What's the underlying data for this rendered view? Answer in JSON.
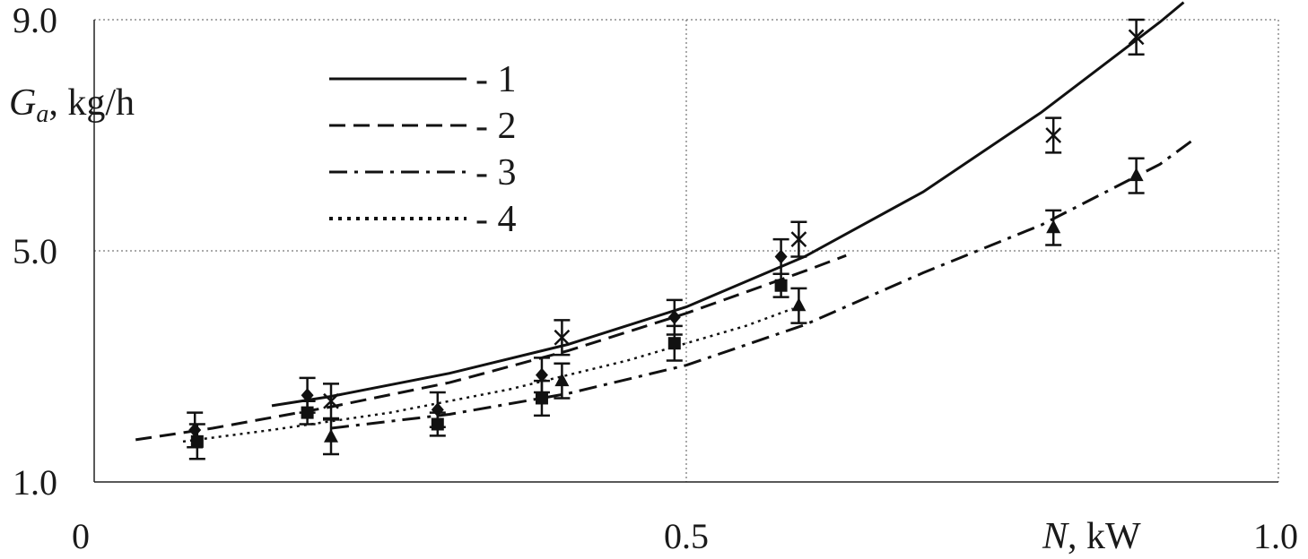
{
  "chart_data": {
    "type": "scatter",
    "xlabel": {
      "var": "N",
      "unit": ", kW"
    },
    "ylabel": {
      "var": "G",
      "sub": "a",
      "unit": ", kg/h"
    },
    "xlim": [
      0,
      1.0
    ],
    "ylim": [
      1.0,
      9.0
    ],
    "x_ticks": [
      {
        "value": 0,
        "label": "0"
      },
      {
        "value": 0.5,
        "label": "0.5"
      },
      {
        "value": 1.0,
        "label": "1.0"
      }
    ],
    "y_ticks": [
      {
        "value": 1.0,
        "label": "1.0"
      },
      {
        "value": 5.0,
        "label": "5.0"
      },
      {
        "value": 9.0,
        "label": "9.0"
      }
    ],
    "grid": "dotted",
    "legend_position": "top-left",
    "legend": [
      {
        "label": "- 1",
        "style": "solid"
      },
      {
        "label": "- 2",
        "style": "dashed"
      },
      {
        "label": "- 3",
        "style": "dash-dot"
      },
      {
        "label": "- 4",
        "style": "dotted"
      }
    ],
    "series": [
      {
        "marker": "x",
        "points": [
          {
            "x": 0.2,
            "y": 2.4,
            "err": 0.3
          },
          {
            "x": 0.395,
            "y": 3.5,
            "err": 0.3
          },
          {
            "x": 0.595,
            "y": 5.2,
            "err": 0.3
          },
          {
            "x": 0.81,
            "y": 7.0,
            "err": 0.3
          },
          {
            "x": 0.88,
            "y": 8.7,
            "err": 0.3
          }
        ],
        "curve": {
          "style": "solid",
          "x": [
            0.15,
            0.2,
            0.3,
            0.4,
            0.5,
            0.6,
            0.7,
            0.8,
            0.9,
            0.92
          ],
          "y": [
            2.32,
            2.48,
            2.88,
            3.38,
            4.03,
            4.9,
            6.02,
            7.4,
            8.96,
            9.3
          ]
        }
      },
      {
        "marker": "diamond",
        "points": [
          {
            "x": 0.085,
            "y": 1.9,
            "err": 0.3
          },
          {
            "x": 0.18,
            "y": 2.5,
            "err": 0.3
          },
          {
            "x": 0.29,
            "y": 2.25,
            "err": 0.3
          },
          {
            "x": 0.378,
            "y": 2.85,
            "err": 0.3
          },
          {
            "x": 0.49,
            "y": 3.85,
            "err": 0.3
          },
          {
            "x": 0.58,
            "y": 4.9,
            "err": 0.3
          }
        ],
        "curve": {
          "style": "dashed",
          "x": [
            0.035,
            0.1,
            0.2,
            0.3,
            0.4,
            0.5,
            0.6,
            0.635
          ],
          "y": [
            1.73,
            1.93,
            2.3,
            2.72,
            3.27,
            3.92,
            4.65,
            4.92
          ]
        }
      },
      {
        "marker": "triangle",
        "points": [
          {
            "x": 0.2,
            "y": 1.78,
            "err": 0.3
          },
          {
            "x": 0.395,
            "y": 2.75,
            "err": 0.3
          },
          {
            "x": 0.595,
            "y": 4.05,
            "err": 0.3
          },
          {
            "x": 0.81,
            "y": 5.4,
            "err": 0.3
          },
          {
            "x": 0.88,
            "y": 6.3,
            "err": 0.3
          }
        ],
        "curve": {
          "style": "dash-dot",
          "x": [
            0.2,
            0.3,
            0.4,
            0.5,
            0.6,
            0.7,
            0.8,
            0.9,
            0.93
          ],
          "y": [
            1.93,
            2.17,
            2.53,
            3.02,
            3.72,
            4.62,
            5.45,
            6.5,
            6.95
          ]
        }
      },
      {
        "marker": "square",
        "points": [
          {
            "x": 0.087,
            "y": 1.7,
            "err": 0.3
          },
          {
            "x": 0.18,
            "y": 2.2,
            "err": 0.2
          },
          {
            "x": 0.29,
            "y": 2.0,
            "err": 0.2
          },
          {
            "x": 0.378,
            "y": 2.45,
            "err": 0.3
          },
          {
            "x": 0.49,
            "y": 3.4,
            "err": 0.3
          },
          {
            "x": 0.58,
            "y": 4.4,
            "err": 0.2
          }
        ],
        "curve": {
          "style": "dotted",
          "x": [
            0.075,
            0.15,
            0.25,
            0.35,
            0.45,
            0.55,
            0.59
          ],
          "y": [
            1.7,
            1.9,
            2.2,
            2.6,
            3.1,
            3.7,
            4.0
          ]
        }
      }
    ]
  }
}
